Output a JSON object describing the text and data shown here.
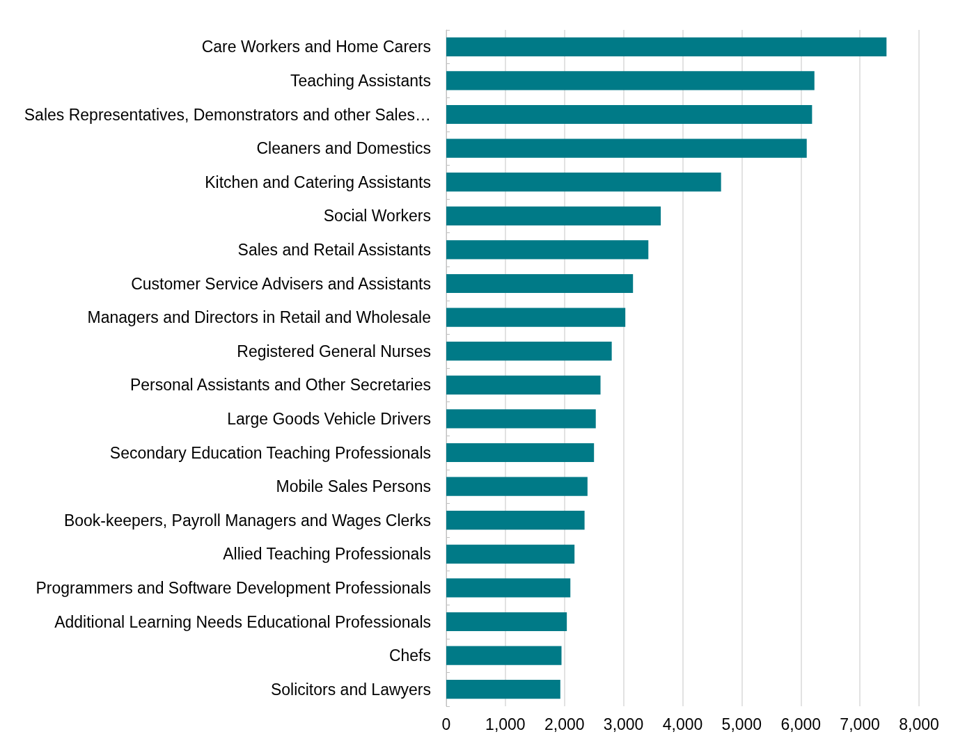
{
  "chart_data": {
    "type": "bar",
    "orientation": "horizontal",
    "categories": [
      "Care Workers and Home Carers",
      "Teaching Assistants",
      "Sales Representatives, Demonstrators and other Sales…",
      "Cleaners and Domestics",
      "Kitchen and Catering Assistants",
      "Social Workers",
      "Sales and Retail Assistants",
      "Customer Service Advisers and Assistants",
      "Managers and Directors in Retail and Wholesale",
      "Registered General Nurses",
      "Personal Assistants and Other Secretaries",
      "Large Goods Vehicle Drivers",
      "Secondary Education Teaching Professionals",
      "Mobile Sales Persons",
      "Book-keepers, Payroll Managers and Wages Clerks",
      "Allied Teaching Professionals",
      "Programmers and Software Development Professionals",
      "Additional Learning Needs Educational Professionals",
      "Chefs",
      "Solicitors and Lawyers"
    ],
    "values": [
      7450,
      6230,
      6190,
      6100,
      4650,
      3630,
      3420,
      3160,
      3030,
      2800,
      2610,
      2530,
      2500,
      2390,
      2340,
      2170,
      2100,
      2040,
      1950,
      1930
    ],
    "color": "#007a87",
    "xlim": [
      0,
      8000
    ],
    "xticks": [
      {
        "value": 0,
        "label": "0"
      },
      {
        "value": 1000,
        "label": "1,000"
      },
      {
        "value": 2000,
        "label": "2,000"
      },
      {
        "value": 3000,
        "label": "3,000"
      },
      {
        "value": 4000,
        "label": "4,000"
      },
      {
        "value": 5000,
        "label": "5,000"
      },
      {
        "value": 6000,
        "label": "6,000"
      },
      {
        "value": 7000,
        "label": "7,000"
      },
      {
        "value": 8000,
        "label": "8,000"
      }
    ],
    "grid": "x"
  }
}
